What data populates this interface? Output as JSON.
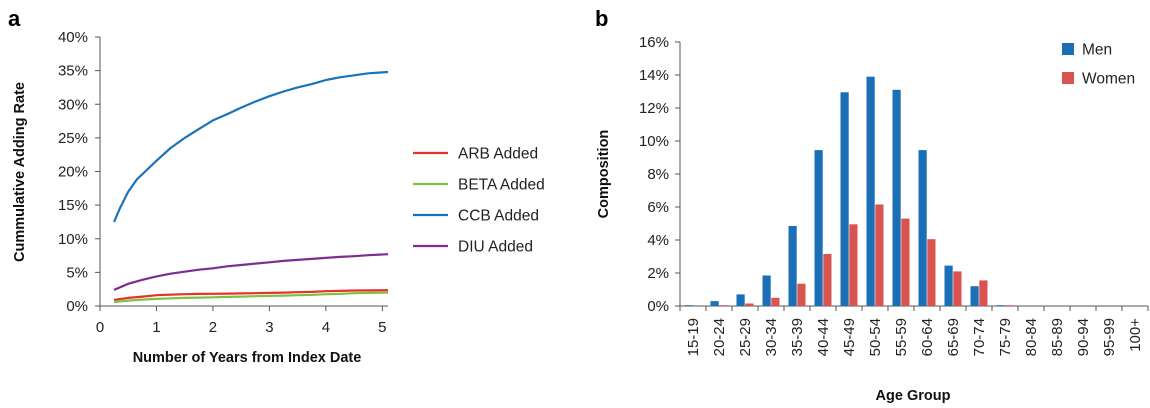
{
  "panel_labels": [
    "a",
    "b"
  ],
  "chart_data": [
    {
      "type": "line",
      "xlabel": "Number of Years from Index Date",
      "ylabel": "Cummulative Adding Rate",
      "xlim": [
        0,
        5.1
      ],
      "ylim": [
        0,
        40
      ],
      "x_ticks": [
        "0",
        "1",
        "2",
        "3",
        "4",
        "5"
      ],
      "y_ticks": [
        "0%",
        "5%",
        "10%",
        "15%",
        "20%",
        "25%",
        "30%",
        "35%",
        "40%"
      ],
      "grid": false,
      "legend_position": "right",
      "series": [
        {
          "name": "ARB Added",
          "color": "#e8312a",
          "x": [
            0.25,
            0.5,
            0.75,
            1.0,
            1.25,
            1.5,
            1.75,
            2.0,
            2.25,
            2.5,
            2.75,
            3.0,
            3.25,
            3.5,
            3.75,
            4.0,
            4.25,
            4.5,
            4.75,
            5.1
          ],
          "y": [
            0.9,
            1.2,
            1.4,
            1.6,
            1.7,
            1.75,
            1.8,
            1.82,
            1.85,
            1.88,
            1.9,
            1.95,
            2.0,
            2.05,
            2.1,
            2.2,
            2.25,
            2.3,
            2.32,
            2.35
          ]
        },
        {
          "name": "BETA Added",
          "color": "#7dc242",
          "x": [
            0.25,
            0.5,
            0.75,
            1.0,
            1.25,
            1.5,
            1.75,
            2.0,
            2.25,
            2.5,
            2.75,
            3.0,
            3.25,
            3.5,
            3.75,
            4.0,
            4.25,
            4.5,
            4.75,
            5.1
          ],
          "y": [
            0.6,
            0.8,
            0.95,
            1.05,
            1.15,
            1.2,
            1.25,
            1.3,
            1.35,
            1.4,
            1.45,
            1.5,
            1.55,
            1.6,
            1.65,
            1.75,
            1.8,
            1.9,
            1.95,
            2.0
          ]
        },
        {
          "name": "CCB Added",
          "color": "#1a73b8",
          "x": [
            0.25,
            0.35,
            0.5,
            0.65,
            0.8,
            1.0,
            1.25,
            1.5,
            1.75,
            2.0,
            2.25,
            2.5,
            2.75,
            3.0,
            3.25,
            3.5,
            3.75,
            4.0,
            4.25,
            4.5,
            4.75,
            5.1
          ],
          "y": [
            12.5,
            14.5,
            17.0,
            18.8,
            20.0,
            21.6,
            23.5,
            25.0,
            26.3,
            27.6,
            28.5,
            29.5,
            30.4,
            31.2,
            31.9,
            32.5,
            33.0,
            33.6,
            34.0,
            34.3,
            34.6,
            34.8
          ]
        },
        {
          "name": "DIU Added",
          "color": "#7b2d91",
          "x": [
            0.25,
            0.5,
            0.75,
            1.0,
            1.25,
            1.5,
            1.75,
            2.0,
            2.25,
            2.5,
            2.75,
            3.0,
            3.25,
            3.5,
            3.75,
            4.0,
            4.25,
            4.5,
            4.75,
            5.1
          ],
          "y": [
            2.4,
            3.3,
            3.9,
            4.4,
            4.8,
            5.1,
            5.4,
            5.6,
            5.9,
            6.1,
            6.3,
            6.5,
            6.7,
            6.85,
            7.0,
            7.15,
            7.3,
            7.4,
            7.55,
            7.7
          ]
        }
      ]
    },
    {
      "type": "bar",
      "xlabel": "Age Group",
      "ylabel": "Composition",
      "ylim": [
        0,
        16
      ],
      "y_ticks": [
        "0%",
        "2%",
        "4%",
        "6%",
        "8%",
        "10%",
        "12%",
        "14%",
        "16%"
      ],
      "grid": false,
      "legend_position": "top-right",
      "categories": [
        "15-19",
        "20-24",
        "25-29",
        "30-34",
        "35-39",
        "40-44",
        "45-49",
        "50-54",
        "55-59",
        "60-64",
        "65-69",
        "70-74",
        "75-79",
        "80-84",
        "85-89",
        "90-94",
        "95-99",
        "100+"
      ],
      "series": [
        {
          "name": "Men",
          "color": "#1b6fb6",
          "values": [
            0.05,
            0.3,
            0.7,
            1.85,
            4.85,
            9.45,
            12.95,
            13.9,
            13.1,
            9.45,
            2.45,
            1.2,
            0.05,
            0,
            0,
            0,
            0,
            0
          ]
        },
        {
          "name": "Women",
          "color": "#d9534f",
          "values": [
            0,
            0.05,
            0.15,
            0.5,
            1.35,
            3.15,
            4.95,
            6.15,
            5.3,
            4.05,
            2.1,
            1.55,
            0.05,
            0,
            0,
            0,
            0,
            0
          ]
        }
      ]
    }
  ]
}
